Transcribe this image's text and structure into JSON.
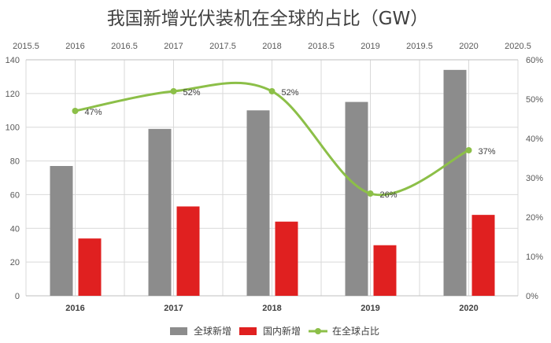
{
  "chart_data": {
    "type": "bar",
    "title": "我国新增光伏装机在全球的占比（GW）",
    "categories": [
      "2016",
      "2017",
      "2018",
      "2019",
      "2020"
    ],
    "series": [
      {
        "name": "全球新增",
        "kind": "bar",
        "axis": "left",
        "color": "#8c8c8c",
        "values": [
          77,
          99,
          110,
          115,
          134
        ]
      },
      {
        "name": "国内新增",
        "kind": "bar",
        "axis": "left",
        "color": "#e02020",
        "values": [
          34,
          53,
          44,
          30,
          48
        ]
      },
      {
        "name": "在全球占比",
        "kind": "line",
        "axis": "right",
        "color": "#8cbf48",
        "values": [
          47,
          52,
          52,
          26,
          37
        ],
        "labels": [
          "47%",
          "52%",
          "52%",
          "26%",
          "37%"
        ]
      }
    ],
    "y_left": {
      "min": 0,
      "max": 140,
      "ticks": [
        "0",
        "20",
        "40",
        "60",
        "80",
        "100",
        "120",
        "140"
      ]
    },
    "y_right": {
      "min": 0,
      "max": 60,
      "ticks": [
        "0%",
        "10%",
        "20%",
        "30%",
        "40%",
        "50%",
        "60%"
      ]
    },
    "x_top": {
      "min": 2015.5,
      "max": 2020.5,
      "ticks": [
        "2015.5",
        "2016",
        "2016.5",
        "2017",
        "2017.5",
        "2018",
        "2018.5",
        "2019",
        "2019.5",
        "2020",
        "2020.5"
      ]
    },
    "grid": true,
    "legend_position": "bottom"
  }
}
